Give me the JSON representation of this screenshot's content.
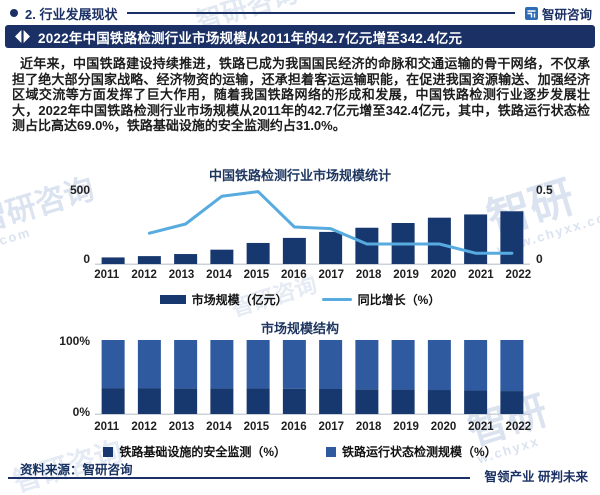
{
  "page": {
    "section_label": "2. 行业发展现状",
    "brand": "智研咨询",
    "headline": "2022年中国铁路检测行业市场规模从2011年的42.7亿元增至342.4亿元",
    "body": "近年来，中国铁路建设持续推进，铁路已成为我国国民经济的命脉和交通运输的骨干网络，不仅承担了绝大部分国家战略、经济物资的运输，还承担着客运运输职能，在促进我国资源输送、加强经济区域交流等方面发挥了巨大作用，随着我国铁路网络的形成和发展，中国铁路检测行业逐步发展壮大，2022年中国铁路检测行业市场规模从2011年的42.7亿元增至342.4亿元，其中，铁路运行状态检测占比高达69.0%，铁路基础设施的安全监测约占31.0%。",
    "source": "资料来源：智研咨询",
    "slogan": "智领产业 研判未来",
    "watermarks": {
      "brand": "智研咨询",
      "brand_short": "智研",
      "url": "www.chyxx.com",
      "url_frag": "w.chyxx",
      "domain_frag": "x.com"
    }
  },
  "colors": {
    "navy": "#1b3064",
    "bar": "#17386e",
    "line": "#57abdf",
    "stack_bottom": "#17386e",
    "stack_top": "#2f5aa0",
    "axis": "#ccd1da"
  },
  "chart_data": [
    {
      "type": "bar",
      "subtype": "bar+line combo, dual axis",
      "title": "中国铁路检测行业市场规模统计",
      "categories": [
        "2011",
        "2012",
        "2013",
        "2014",
        "2015",
        "2016",
        "2017",
        "2018",
        "2019",
        "2020",
        "2021",
        "2022"
      ],
      "series": [
        {
          "name": "市场规模（亿元）",
          "type": "bar",
          "axis": "left",
          "values": [
            42.7,
            51.2,
            64.6,
            93.0,
            136.7,
            169.5,
            208.4,
            235.5,
            266.2,
            300.8,
            321.8,
            342.4
          ]
        },
        {
          "name": "同比增长（%）",
          "type": "line",
          "axis": "right",
          "values": [
            null,
            0.2,
            0.26,
            0.44,
            0.47,
            0.24,
            0.23,
            0.13,
            0.13,
            0.13,
            0.07,
            0.07
          ]
        }
      ],
      "left_axis": {
        "min": 0,
        "max": 500,
        "label_top": "500",
        "label_bottom": "0"
      },
      "right_axis": {
        "min": 0,
        "max": 0.5,
        "label_top": "0.5",
        "label_bottom": "0"
      },
      "grid": false,
      "legend_position": "bottom"
    },
    {
      "type": "bar",
      "subtype": "100% stacked bars",
      "title": "市场规模结构",
      "categories": [
        "2011",
        "2012",
        "2013",
        "2014",
        "2015",
        "2016",
        "2017",
        "2018",
        "2019",
        "2020",
        "2021",
        "2022"
      ],
      "series": [
        {
          "name": "铁路基础设施的安全监测（%）",
          "values": [
            35.0,
            35.0,
            34.8,
            34.6,
            34.4,
            34.2,
            33.8,
            33.4,
            33.0,
            32.4,
            31.7,
            31.0
          ]
        },
        {
          "name": "铁路运行状态检测规模（%）",
          "values": [
            65.0,
            65.0,
            65.2,
            65.4,
            65.6,
            65.8,
            66.2,
            66.6,
            67.0,
            67.6,
            68.3,
            69.0
          ]
        }
      ],
      "y_axis": {
        "min": 0,
        "max": 100,
        "label_top": "100%",
        "label_bottom": "0%"
      },
      "grid": false,
      "legend_position": "bottom"
    }
  ]
}
